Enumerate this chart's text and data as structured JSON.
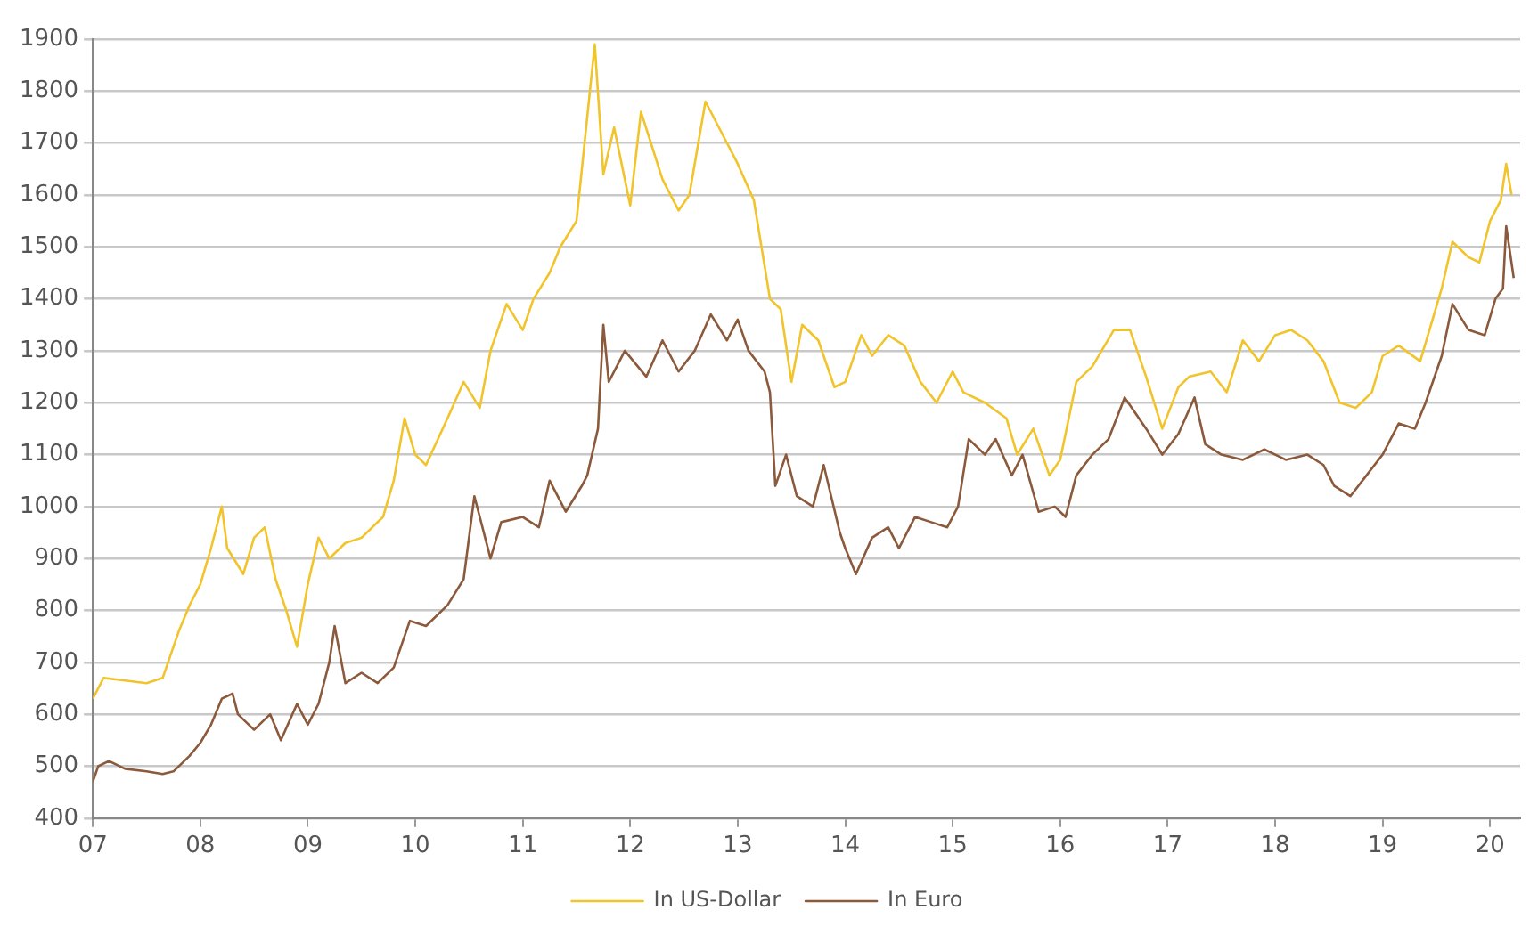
{
  "chart_data": {
    "type": "line",
    "legend": "bottom",
    "grid": "y",
    "marker": "none",
    "line_style": "solid",
    "xlim": [
      2007,
      2020.28
    ],
    "xticks": [
      {
        "value": 2007,
        "label": "07"
      },
      {
        "value": 2008,
        "label": "08"
      },
      {
        "value": 2009,
        "label": "09"
      },
      {
        "value": 2010,
        "label": "10"
      },
      {
        "value": 2011,
        "label": "11"
      },
      {
        "value": 2012,
        "label": "12"
      },
      {
        "value": 2013,
        "label": "13"
      },
      {
        "value": 2014,
        "label": "14"
      },
      {
        "value": 2015,
        "label": "15"
      },
      {
        "value": 2016,
        "label": "16"
      },
      {
        "value": 2017,
        "label": "17"
      },
      {
        "value": 2018,
        "label": "18"
      },
      {
        "value": 2019,
        "label": "19"
      },
      {
        "value": 2020,
        "label": "20"
      }
    ],
    "ylim": [
      400,
      1900
    ],
    "yticks": [
      400,
      500,
      600,
      700,
      800,
      900,
      1000,
      1100,
      1200,
      1300,
      1400,
      1500,
      1600,
      1700,
      1800,
      1900
    ],
    "series": [
      {
        "name": "In US-Dollar",
        "color": "#f2c42c",
        "x": [
          2007.0,
          2007.1,
          2007.3,
          2007.5,
          2007.65,
          2007.8,
          2007.9,
          2008.0,
          2008.1,
          2008.2,
          2008.25,
          2008.4,
          2008.5,
          2008.6,
          2008.7,
          2008.8,
          2008.9,
          2009.0,
          2009.1,
          2009.2,
          2009.35,
          2009.5,
          2009.7,
          2009.8,
          2009.9,
          2010.0,
          2010.1,
          2010.3,
          2010.45,
          2010.6,
          2010.7,
          2010.85,
          2011.0,
          2011.1,
          2011.25,
          2011.35,
          2011.5,
          2011.6,
          2011.67,
          2011.75,
          2011.85,
          2012.0,
          2012.1,
          2012.3,
          2012.45,
          2012.55,
          2012.7,
          2012.85,
          2013.0,
          2013.15,
          2013.3,
          2013.4,
          2013.5,
          2013.6,
          2013.75,
          2013.9,
          2014.0,
          2014.15,
          2014.25,
          2014.4,
          2014.55,
          2014.7,
          2014.85,
          2015.0,
          2015.1,
          2015.3,
          2015.5,
          2015.6,
          2015.75,
          2015.9,
          2016.0,
          2016.15,
          2016.3,
          2016.5,
          2016.65,
          2016.8,
          2016.95,
          2017.1,
          2017.2,
          2017.4,
          2017.55,
          2017.7,
          2017.85,
          2018.0,
          2018.15,
          2018.3,
          2018.45,
          2018.6,
          2018.75,
          2018.9,
          2019.0,
          2019.15,
          2019.35,
          2019.45,
          2019.55,
          2019.65,
          2019.8,
          2019.9,
          2020.0,
          2020.1,
          2020.15,
          2020.2
        ],
        "values": [
          630,
          670,
          665,
          660,
          670,
          760,
          810,
          850,
          920,
          1000,
          920,
          870,
          940,
          960,
          860,
          800,
          730,
          850,
          940,
          900,
          930,
          940,
          980,
          1050,
          1170,
          1100,
          1080,
          1170,
          1240,
          1190,
          1300,
          1390,
          1340,
          1400,
          1450,
          1500,
          1550,
          1750,
          1890,
          1640,
          1730,
          1580,
          1760,
          1630,
          1570,
          1600,
          1780,
          1720,
          1660,
          1590,
          1400,
          1380,
          1240,
          1350,
          1320,
          1230,
          1240,
          1330,
          1290,
          1330,
          1310,
          1240,
          1200,
          1260,
          1220,
          1200,
          1170,
          1100,
          1150,
          1060,
          1090,
          1240,
          1270,
          1340,
          1340,
          1250,
          1150,
          1230,
          1250,
          1260,
          1220,
          1320,
          1280,
          1330,
          1340,
          1320,
          1280,
          1200,
          1190,
          1220,
          1290,
          1310,
          1280,
          1350,
          1420,
          1510,
          1480,
          1470,
          1550,
          1590,
          1660,
          1600
        ]
      },
      {
        "name": "In Euro",
        "color": "#8b5a3c",
        "x": [
          2007.0,
          2007.05,
          2007.15,
          2007.3,
          2007.5,
          2007.65,
          2007.75,
          2007.9,
          2008.0,
          2008.1,
          2008.2,
          2008.3,
          2008.35,
          2008.5,
          2008.65,
          2008.75,
          2008.9,
          2009.0,
          2009.1,
          2009.2,
          2009.25,
          2009.35,
          2009.5,
          2009.65,
          2009.8,
          2009.95,
          2010.1,
          2010.3,
          2010.45,
          2010.55,
          2010.7,
          2010.8,
          2011.0,
          2011.15,
          2011.25,
          2011.4,
          2011.55,
          2011.6,
          2011.7,
          2011.75,
          2011.8,
          2011.95,
          2012.15,
          2012.3,
          2012.45,
          2012.6,
          2012.75,
          2012.9,
          2013.0,
          2013.1,
          2013.25,
          2013.3,
          2013.35,
          2013.45,
          2013.55,
          2013.7,
          2013.8,
          2013.95,
          2014.0,
          2014.1,
          2014.25,
          2014.4,
          2014.5,
          2014.65,
          2014.8,
          2014.95,
          2015.05,
          2015.15,
          2015.3,
          2015.4,
          2015.55,
          2015.65,
          2015.8,
          2015.95,
          2016.05,
          2016.15,
          2016.3,
          2016.45,
          2016.6,
          2016.8,
          2016.95,
          2017.1,
          2017.25,
          2017.35,
          2017.5,
          2017.7,
          2017.9,
          2018.1,
          2018.3,
          2018.45,
          2018.55,
          2018.7,
          2018.85,
          2019.0,
          2019.15,
          2019.3,
          2019.4,
          2019.55,
          2019.65,
          2019.8,
          2019.95,
          2020.05,
          2020.12,
          2020.15,
          2020.22
        ],
        "values": [
          470,
          500,
          510,
          495,
          490,
          485,
          490,
          520,
          545,
          580,
          630,
          640,
          600,
          570,
          600,
          550,
          620,
          580,
          620,
          700,
          770,
          660,
          680,
          660,
          690,
          780,
          770,
          810,
          860,
          1020,
          900,
          970,
          980,
          960,
          1050,
          990,
          1040,
          1060,
          1150,
          1350,
          1240,
          1300,
          1250,
          1320,
          1260,
          1300,
          1370,
          1320,
          1360,
          1300,
          1260,
          1220,
          1040,
          1100,
          1020,
          1000,
          1080,
          950,
          920,
          870,
          940,
          960,
          920,
          980,
          970,
          960,
          1000,
          1130,
          1100,
          1130,
          1060,
          1100,
          990,
          1000,
          980,
          1060,
          1100,
          1130,
          1210,
          1150,
          1100,
          1140,
          1210,
          1120,
          1100,
          1090,
          1110,
          1090,
          1100,
          1080,
          1040,
          1020,
          1060,
          1100,
          1160,
          1150,
          1200,
          1290,
          1390,
          1340,
          1330,
          1400,
          1420,
          1540,
          1440
        ]
      }
    ]
  }
}
